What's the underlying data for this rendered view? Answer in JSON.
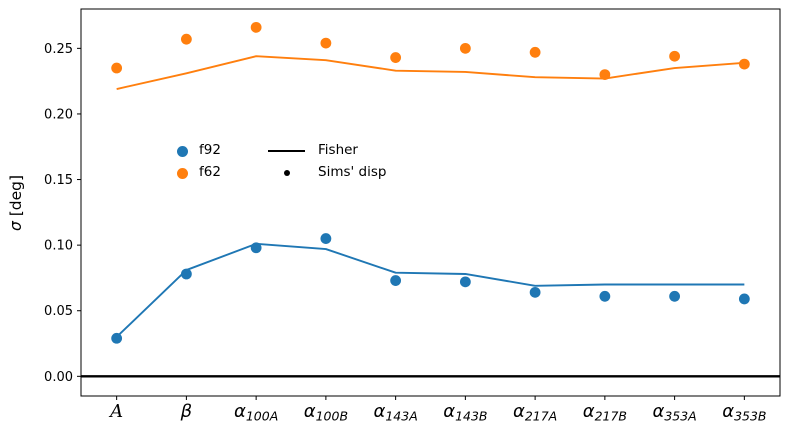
{
  "chart_data": {
    "type": "line",
    "title": "",
    "xlabel": "",
    "ylabel": "σ [deg]",
    "ylabel_symbol": "σ",
    "ylabel_unit": " [deg]",
    "ylim": [
      -0.015,
      0.28
    ],
    "yticks": [
      0.0,
      0.05,
      0.1,
      0.15,
      0.2,
      0.25
    ],
    "ytick_labels": [
      "0.00",
      "0.05",
      "0.10",
      "0.15",
      "0.20",
      "0.25"
    ],
    "grid": false,
    "legend_position": "center-left",
    "categories": [
      {
        "base": "A",
        "sub": "",
        "style": "script"
      },
      {
        "base": "β",
        "sub": "",
        "style": "italic"
      },
      {
        "base": "α",
        "sub": "100A",
        "style": "italic"
      },
      {
        "base": "α",
        "sub": "100B",
        "style": "italic"
      },
      {
        "base": "α",
        "sub": "143A",
        "style": "italic"
      },
      {
        "base": "α",
        "sub": "143B",
        "style": "italic"
      },
      {
        "base": "α",
        "sub": "217A",
        "style": "italic"
      },
      {
        "base": "α",
        "sub": "217B",
        "style": "italic"
      },
      {
        "base": "α",
        "sub": "353A",
        "style": "italic"
      },
      {
        "base": "α",
        "sub": "353B",
        "style": "italic"
      }
    ],
    "series": [
      {
        "name": "f92 Fisher",
        "kind": "line",
        "color": "#1f77b4",
        "values": [
          0.03,
          0.081,
          0.101,
          0.097,
          0.079,
          0.078,
          0.069,
          0.07,
          0.07,
          0.07
        ]
      },
      {
        "name": "f92 Sims' disp",
        "kind": "scatter",
        "color": "#1f77b4",
        "values": [
          0.029,
          0.078,
          0.098,
          0.105,
          0.073,
          0.072,
          0.064,
          0.061,
          0.061,
          0.059
        ]
      },
      {
        "name": "f62 Fisher",
        "kind": "line",
        "color": "#ff7f0e",
        "values": [
          0.219,
          0.231,
          0.244,
          0.241,
          0.233,
          0.232,
          0.228,
          0.227,
          0.235,
          0.239
        ]
      },
      {
        "name": "f62 Sims' disp",
        "kind": "scatter",
        "color": "#ff7f0e",
        "values": [
          0.235,
          0.257,
          0.266,
          0.254,
          0.243,
          0.25,
          0.247,
          0.23,
          0.244,
          0.238
        ]
      }
    ],
    "hline": {
      "y": 0.0,
      "color": "#000000"
    },
    "legend": {
      "entries": [
        {
          "marker": "dot",
          "color": "#1f77b4",
          "label": "f92"
        },
        {
          "marker": "dot",
          "color": "#ff7f0e",
          "label": "f62"
        },
        {
          "marker": "line",
          "color": "#000000",
          "label": "Fisher"
        },
        {
          "marker": "small-dot",
          "color": "#000000",
          "label": "Sims' disp"
        }
      ]
    }
  }
}
